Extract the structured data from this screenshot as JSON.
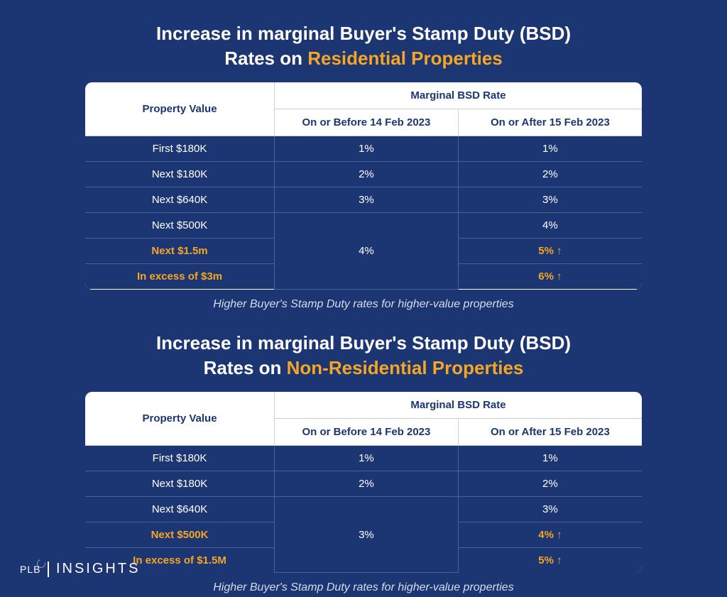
{
  "colors": {
    "background": "#1c3673",
    "accent": "#f5a623",
    "white": "#ffffff",
    "table_border_light": "#c8cfdd",
    "table_border_dark": "#4a5f93",
    "caption": "#d7dcea"
  },
  "typography": {
    "title_fontsize": 26,
    "header_fontsize": 15,
    "cell_fontsize": 15,
    "caption_fontsize": 16,
    "font_family": "Arial"
  },
  "sections": [
    {
      "title_line1": "Increase in marginal Buyer's Stamp Duty (BSD)",
      "title_line2_prefix": "Rates on ",
      "title_line2_accent": "Residential Properties",
      "header_col1": "Property Value",
      "header_group": "Marginal BSD Rate",
      "header_sub1": "On or Before 14 Feb 2023",
      "header_sub2": "On or After 15 Feb 2023",
      "rows": [
        {
          "label": "First $180K",
          "before": "1%",
          "after": "1%",
          "highlight": false,
          "arrow": false
        },
        {
          "label": "Next $180K",
          "before": "2%",
          "after": "2%",
          "highlight": false,
          "arrow": false
        },
        {
          "label": "Next $640K",
          "before": "3%",
          "after": "3%",
          "highlight": false,
          "arrow": false
        },
        {
          "label": "Next $500K",
          "before": "__merge__",
          "after": "4%",
          "highlight": false,
          "arrow": false
        },
        {
          "label": "Next $1.5m",
          "before": "4%",
          "after": "5%",
          "highlight": true,
          "arrow": true,
          "merge_rows": 3
        },
        {
          "label": "In excess of $3m",
          "before": "__merge__",
          "after": "6%",
          "highlight": true,
          "arrow": true
        }
      ],
      "merge_start": 3,
      "merge_span": 3,
      "merge_value": "4%",
      "caption": "Higher Buyer's Stamp Duty rates for higher-value properties"
    },
    {
      "title_line1": "Increase in marginal Buyer's Stamp Duty (BSD)",
      "title_line2_prefix": "Rates on ",
      "title_line2_accent": "Non-Residential Properties",
      "header_col1": "Property Value",
      "header_group": "Marginal BSD Rate",
      "header_sub1": "On or Before 14 Feb 2023",
      "header_sub2": "On or After 15 Feb 2023",
      "rows": [
        {
          "label": "First $180K",
          "before": "1%",
          "after": "1%",
          "highlight": false,
          "arrow": false
        },
        {
          "label": "Next $180K",
          "before": "2%",
          "after": "2%",
          "highlight": false,
          "arrow": false
        },
        {
          "label": "Next $640K",
          "before": "__merge__",
          "after": "3%",
          "highlight": false,
          "arrow": false
        },
        {
          "label": "Next $500K",
          "before": "3%",
          "after": "4%",
          "highlight": true,
          "arrow": true
        },
        {
          "label": "In excess of $1.5M",
          "before": "__merge__",
          "after": "5%",
          "highlight": true,
          "arrow": true
        }
      ],
      "merge_start": 2,
      "merge_span": 3,
      "merge_value": "3%",
      "caption": "Higher Buyer's Stamp Duty rates for higher-value properties"
    }
  ],
  "logo": {
    "left": "PLB",
    "right": "INSIGHTS"
  }
}
